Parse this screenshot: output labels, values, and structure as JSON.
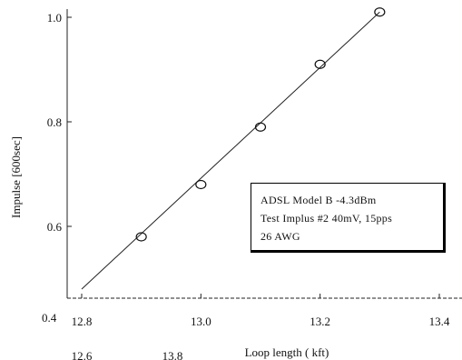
{
  "chart_data": {
    "type": "line",
    "ylabel": "Impulse [600sec]",
    "xlabel": "Loop length (   kft)",
    "xlim": [
      12.7,
      13.4
    ],
    "ylim": [
      0.47,
      1.03
    ],
    "x_ticks": [
      12.8,
      13.0,
      13.2,
      13.4
    ],
    "x_tick_labels": [
      "12.8",
      "13.0",
      "13.2",
      "13.4"
    ],
    "y_ticks": [
      0.6,
      0.8,
      1.0
    ],
    "y_tick_labels": [
      "0.6",
      "0.8",
      "1.0"
    ],
    "stray_labels": {
      "y_bottom": "0.4",
      "x_old_1": "12.6",
      "x_old_2": "13.8"
    },
    "series": [
      {
        "marker": "circle",
        "x": [
          12.9,
          13.0,
          13.1,
          13.2,
          13.3
        ],
        "values": [
          0.58,
          0.68,
          0.79,
          0.91,
          1.01
        ]
      }
    ],
    "fit_line": {
      "x": [
        12.8,
        13.3
      ],
      "y": [
        0.48,
        1.01
      ]
    },
    "legend": {
      "position": "center-right",
      "lines": [
        "ADSL Model B  -4.3dBm",
        "Test Implus #2  40mV, 15pps",
        "26 AWG"
      ]
    },
    "grid": false
  }
}
